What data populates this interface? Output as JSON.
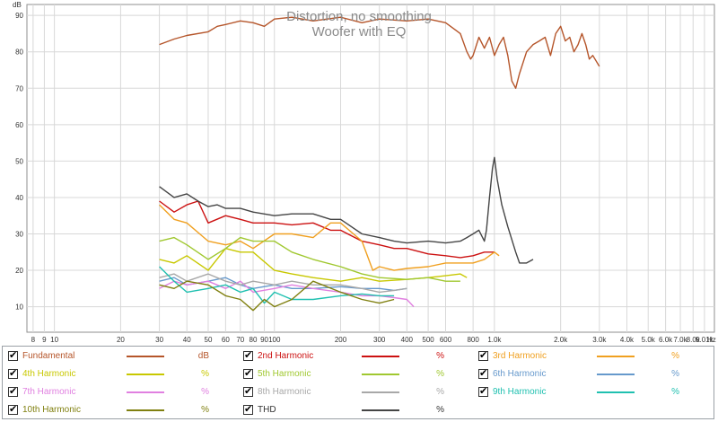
{
  "chart_data": {
    "type": "line",
    "title": "Distortion, no smoothing",
    "subtitle": "Woofer with EQ",
    "ylabel": "dB",
    "xlabel": "Hz",
    "xscale": "log",
    "xlim": [
      7.5,
      10000
    ],
    "ylim": [
      3,
      93
    ],
    "grid": true,
    "legend_position": "bottom",
    "y_ticks": [
      10,
      20,
      30,
      40,
      50,
      60,
      70,
      80,
      90
    ],
    "x_ticks": [
      {
        "v": 8,
        "label": "8"
      },
      {
        "v": 9,
        "label": "9"
      },
      {
        "v": 10,
        "label": "10"
      },
      {
        "v": 20,
        "label": "20"
      },
      {
        "v": 30,
        "label": "30"
      },
      {
        "v": 40,
        "label": "40"
      },
      {
        "v": 50,
        "label": "50"
      },
      {
        "v": 60,
        "label": "60"
      },
      {
        "v": 70,
        "label": "70"
      },
      {
        "v": 80,
        "label": "80"
      },
      {
        "v": 90,
        "label": "90"
      },
      {
        "v": 100,
        "label": "100"
      },
      {
        "v": 200,
        "label": "200"
      },
      {
        "v": 300,
        "label": "300"
      },
      {
        "v": 400,
        "label": "400"
      },
      {
        "v": 500,
        "label": "500"
      },
      {
        "v": 600,
        "label": "600"
      },
      {
        "v": 800,
        "label": "800"
      },
      {
        "v": 1000,
        "label": "1.0k"
      },
      {
        "v": 2000,
        "label": "2.0k"
      },
      {
        "v": 3000,
        "label": "3.0k"
      },
      {
        "v": 4000,
        "label": "4.0k"
      },
      {
        "v": 5000,
        "label": "5.0k"
      },
      {
        "v": 6000,
        "label": "6.0k"
      },
      {
        "v": 7000,
        "label": "7.0k"
      },
      {
        "v": 8000,
        "label": "8.0k"
      },
      {
        "v": 9010,
        "label": "9.01k"
      }
    ],
    "series": [
      {
        "name": "Fundamental",
        "unit": "dB",
        "color": "#b5552a",
        "points": [
          [
            30,
            82
          ],
          [
            35,
            83.5
          ],
          [
            40,
            84.5
          ],
          [
            50,
            85.5
          ],
          [
            55,
            87
          ],
          [
            60,
            87.5
          ],
          [
            70,
            88.5
          ],
          [
            80,
            88
          ],
          [
            90,
            87
          ],
          [
            100,
            89
          ],
          [
            120,
            89.5
          ],
          [
            150,
            88.5
          ],
          [
            200,
            89.5
          ],
          [
            250,
            88
          ],
          [
            300,
            89
          ],
          [
            400,
            88.5
          ],
          [
            500,
            89
          ],
          [
            600,
            88
          ],
          [
            700,
            85
          ],
          [
            750,
            80
          ],
          [
            780,
            78
          ],
          [
            800,
            79
          ],
          [
            850,
            84
          ],
          [
            900,
            81
          ],
          [
            950,
            84
          ],
          [
            1000,
            79
          ],
          [
            1050,
            82
          ],
          [
            1100,
            84
          ],
          [
            1150,
            79
          ],
          [
            1200,
            72
          ],
          [
            1250,
            70
          ],
          [
            1300,
            74
          ],
          [
            1400,
            80
          ],
          [
            1500,
            82
          ],
          [
            1600,
            83
          ],
          [
            1700,
            84
          ],
          [
            1800,
            79
          ],
          [
            1900,
            85
          ],
          [
            2000,
            87
          ],
          [
            2100,
            83
          ],
          [
            2200,
            84
          ],
          [
            2300,
            80
          ],
          [
            2400,
            82
          ],
          [
            2500,
            85
          ],
          [
            2600,
            82
          ],
          [
            2700,
            78
          ],
          [
            2800,
            79
          ],
          [
            3000,
            76
          ]
        ]
      },
      {
        "name": "2nd Harmonic",
        "unit": "%",
        "color": "#cc1111",
        "points": [
          [
            30,
            39
          ],
          [
            35,
            36
          ],
          [
            40,
            38
          ],
          [
            45,
            39
          ],
          [
            50,
            33
          ],
          [
            60,
            35
          ],
          [
            70,
            34
          ],
          [
            80,
            33
          ],
          [
            100,
            33
          ],
          [
            120,
            32.5
          ],
          [
            150,
            33
          ],
          [
            180,
            31
          ],
          [
            200,
            31
          ],
          [
            250,
            28
          ],
          [
            300,
            27
          ],
          [
            350,
            26
          ],
          [
            400,
            26
          ],
          [
            500,
            24.5
          ],
          [
            600,
            24
          ],
          [
            700,
            23.5
          ],
          [
            800,
            24
          ],
          [
            900,
            25
          ],
          [
            1000,
            25
          ]
        ]
      },
      {
        "name": "3rd Harmonic",
        "unit": "%",
        "color": "#f0a020",
        "points": [
          [
            30,
            38
          ],
          [
            35,
            34
          ],
          [
            40,
            33
          ],
          [
            50,
            28
          ],
          [
            60,
            27
          ],
          [
            70,
            28
          ],
          [
            80,
            26
          ],
          [
            100,
            30
          ],
          [
            120,
            30
          ],
          [
            150,
            29
          ],
          [
            180,
            33
          ],
          [
            200,
            33
          ],
          [
            250,
            28
          ],
          [
            280,
            20
          ],
          [
            300,
            21
          ],
          [
            350,
            20
          ],
          [
            400,
            20.5
          ],
          [
            500,
            21
          ],
          [
            600,
            22
          ],
          [
            700,
            22
          ],
          [
            800,
            22
          ],
          [
            900,
            23
          ],
          [
            1000,
            25
          ],
          [
            1050,
            24
          ]
        ]
      },
      {
        "name": "4th Harmonic",
        "unit": "%",
        "color": "#c8c800",
        "points": [
          [
            30,
            23
          ],
          [
            35,
            22
          ],
          [
            40,
            24
          ],
          [
            50,
            20
          ],
          [
            60,
            26
          ],
          [
            70,
            25
          ],
          [
            80,
            25
          ],
          [
            100,
            20
          ],
          [
            120,
            19
          ],
          [
            150,
            18
          ],
          [
            200,
            17
          ],
          [
            250,
            18
          ],
          [
            300,
            17
          ],
          [
            400,
            17.5
          ],
          [
            500,
            18
          ],
          [
            600,
            18.5
          ],
          [
            700,
            19
          ],
          [
            750,
            18
          ]
        ]
      },
      {
        "name": "5th Harmonic",
        "unit": "%",
        "color": "#a0c830",
        "points": [
          [
            30,
            28
          ],
          [
            35,
            29
          ],
          [
            40,
            27
          ],
          [
            50,
            23
          ],
          [
            60,
            26
          ],
          [
            70,
            29
          ],
          [
            80,
            28
          ],
          [
            100,
            28
          ],
          [
            120,
            25
          ],
          [
            150,
            23
          ],
          [
            200,
            21
          ],
          [
            250,
            19
          ],
          [
            300,
            18
          ],
          [
            400,
            17.5
          ],
          [
            500,
            18
          ],
          [
            600,
            17
          ],
          [
            700,
            17
          ]
        ]
      },
      {
        "name": "6th Harmonic",
        "unit": "%",
        "color": "#6699cc",
        "points": [
          [
            30,
            17
          ],
          [
            35,
            18
          ],
          [
            40,
            16
          ],
          [
            50,
            17
          ],
          [
            60,
            18
          ],
          [
            70,
            16
          ],
          [
            80,
            15
          ],
          [
            100,
            16
          ],
          [
            120,
            15
          ],
          [
            150,
            15
          ],
          [
            200,
            15.5
          ],
          [
            250,
            15
          ],
          [
            300,
            15
          ],
          [
            350,
            14.5
          ],
          [
            400,
            15
          ]
        ]
      },
      {
        "name": "7th Harmonic",
        "unit": "%",
        "color": "#e080e0",
        "points": [
          [
            30,
            15
          ],
          [
            35,
            17
          ],
          [
            40,
            16
          ],
          [
            50,
            17
          ],
          [
            60,
            15
          ],
          [
            70,
            17
          ],
          [
            80,
            14
          ],
          [
            100,
            15
          ],
          [
            120,
            16
          ],
          [
            150,
            15
          ],
          [
            200,
            14
          ],
          [
            250,
            13
          ],
          [
            300,
            13
          ],
          [
            350,
            12.5
          ],
          [
            400,
            12
          ],
          [
            430,
            10
          ]
        ]
      },
      {
        "name": "8th Harmonic",
        "unit": "%",
        "color": "#a8a8a8",
        "points": [
          [
            30,
            18
          ],
          [
            35,
            19
          ],
          [
            40,
            17
          ],
          [
            50,
            19
          ],
          [
            60,
            17
          ],
          [
            70,
            16
          ],
          [
            80,
            17
          ],
          [
            100,
            16
          ],
          [
            120,
            17
          ],
          [
            150,
            16
          ],
          [
            200,
            16
          ],
          [
            250,
            15
          ],
          [
            300,
            14
          ],
          [
            350,
            14.5
          ],
          [
            400,
            15
          ]
        ]
      },
      {
        "name": "9th Harmonic",
        "unit": "%",
        "color": "#20c0b0",
        "points": [
          [
            30,
            21
          ],
          [
            35,
            17
          ],
          [
            40,
            14
          ],
          [
            50,
            15
          ],
          [
            60,
            16
          ],
          [
            70,
            14
          ],
          [
            80,
            15
          ],
          [
            90,
            11
          ],
          [
            100,
            14
          ],
          [
            120,
            12
          ],
          [
            150,
            12
          ],
          [
            200,
            13
          ],
          [
            250,
            13.5
          ],
          [
            300,
            13
          ],
          [
            350,
            13
          ]
        ]
      },
      {
        "name": "10th Harmonic",
        "unit": "%",
        "color": "#808010",
        "points": [
          [
            30,
            16
          ],
          [
            35,
            15
          ],
          [
            40,
            17
          ],
          [
            50,
            16
          ],
          [
            60,
            13
          ],
          [
            70,
            12
          ],
          [
            80,
            9
          ],
          [
            90,
            12
          ],
          [
            100,
            10
          ],
          [
            120,
            12
          ],
          [
            150,
            17
          ],
          [
            200,
            14
          ],
          [
            250,
            12
          ],
          [
            300,
            11
          ],
          [
            350,
            12
          ]
        ]
      },
      {
        "name": "THD",
        "unit": "%",
        "color": "#454545",
        "points": [
          [
            30,
            43
          ],
          [
            35,
            40
          ],
          [
            40,
            41
          ],
          [
            45,
            39
          ],
          [
            50,
            37.5
          ],
          [
            55,
            38
          ],
          [
            60,
            37
          ],
          [
            70,
            37
          ],
          [
            80,
            36
          ],
          [
            100,
            35
          ],
          [
            120,
            35.5
          ],
          [
            150,
            35.5
          ],
          [
            180,
            34
          ],
          [
            200,
            34
          ],
          [
            250,
            30
          ],
          [
            300,
            29
          ],
          [
            350,
            28
          ],
          [
            400,
            27.5
          ],
          [
            500,
            28
          ],
          [
            600,
            27.5
          ],
          [
            700,
            28
          ],
          [
            750,
            29
          ],
          [
            800,
            30
          ],
          [
            850,
            31
          ],
          [
            900,
            28
          ],
          [
            920,
            31
          ],
          [
            950,
            40
          ],
          [
            980,
            48
          ],
          [
            1000,
            51
          ],
          [
            1030,
            45
          ],
          [
            1080,
            38
          ],
          [
            1150,
            32
          ],
          [
            1250,
            25
          ],
          [
            1300,
            22
          ],
          [
            1400,
            22
          ],
          [
            1450,
            22.5
          ],
          [
            1500,
            23
          ]
        ]
      }
    ]
  },
  "legend": {
    "items": [
      {
        "label": "Fundamental",
        "unit": "dB",
        "color": "#b5552a",
        "label_color": "#b5552a"
      },
      {
        "label": "2nd Harmonic",
        "unit": "%",
        "color": "#cc1111",
        "label_color": "#cc1111"
      },
      {
        "label": "3rd Harmonic",
        "unit": "%",
        "color": "#f0a020",
        "label_color": "#f0a020"
      },
      {
        "label": "4th Harmonic",
        "unit": "%",
        "color": "#c8c800",
        "label_color": "#c8c800"
      },
      {
        "label": "5th Harmonic",
        "unit": "%",
        "color": "#a0c830",
        "label_color": "#a0c830"
      },
      {
        "label": "6th Harmonic",
        "unit": "%",
        "color": "#6699cc",
        "label_color": "#6699cc"
      },
      {
        "label": "7th Harmonic",
        "unit": "%",
        "color": "#e080e0",
        "label_color": "#e080e0"
      },
      {
        "label": "8th Harmonic",
        "unit": "%",
        "color": "#a8a8a8",
        "label_color": "#a8a8a8"
      },
      {
        "label": "9th Harmonic",
        "unit": "%",
        "color": "#20c0b0",
        "label_color": "#20c0b0"
      },
      {
        "label": "10th Harmonic",
        "unit": "%",
        "color": "#808010",
        "label_color": "#808010"
      },
      {
        "label": "THD",
        "unit": "%",
        "color": "#454545",
        "label_color": "#333333"
      }
    ]
  }
}
